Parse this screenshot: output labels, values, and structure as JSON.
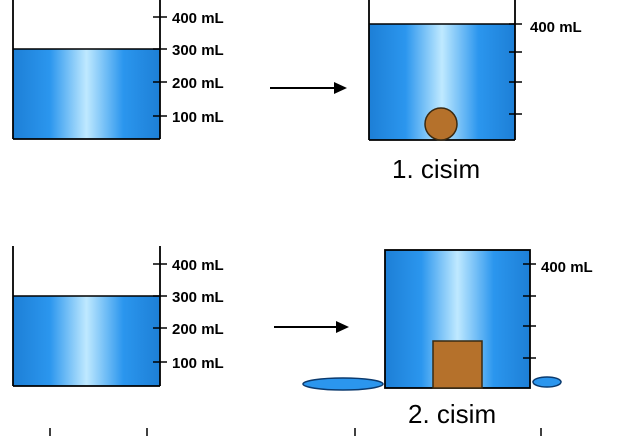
{
  "colors": {
    "water_edge": "#1d7fd6",
    "water_mid": "#bfe9ff",
    "water_side": "#2b96ee",
    "object": "#b5712b",
    "object_stroke": "#3a2a12"
  },
  "scale_labels": {
    "l400": "400 mL",
    "l300": "300 mL",
    "l200": "200 mL",
    "l100": "100 mL"
  },
  "cylinder1_after_label": "400 mL",
  "cylinder2_after_label": "400 mL",
  "caption1": "1. cisim",
  "caption2": "2. cisim"
}
